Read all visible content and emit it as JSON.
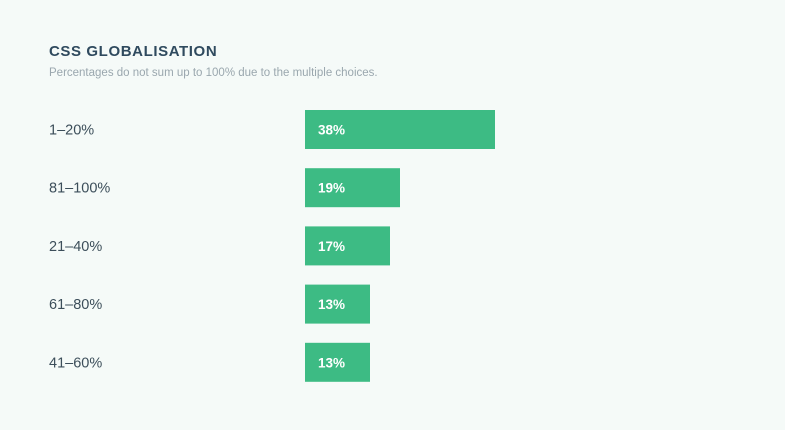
{
  "chart_data": {
    "type": "bar",
    "orientation": "horizontal",
    "title": "CSS GLOBALISATION",
    "subtitle": "Percentages do not sum up to 100% due to the multiple choices.",
    "categories": [
      "1–20%",
      "81–100%",
      "21–40%",
      "61–80%",
      "41–60%"
    ],
    "values": [
      38,
      19,
      17,
      13,
      13
    ],
    "value_labels": [
      "38%",
      "19%",
      "17%",
      "13%",
      "13%"
    ],
    "unit": "%",
    "xlim": [
      0,
      100
    ],
    "grid": false,
    "legend": "none",
    "bar_color": "#3dbb84"
  }
}
